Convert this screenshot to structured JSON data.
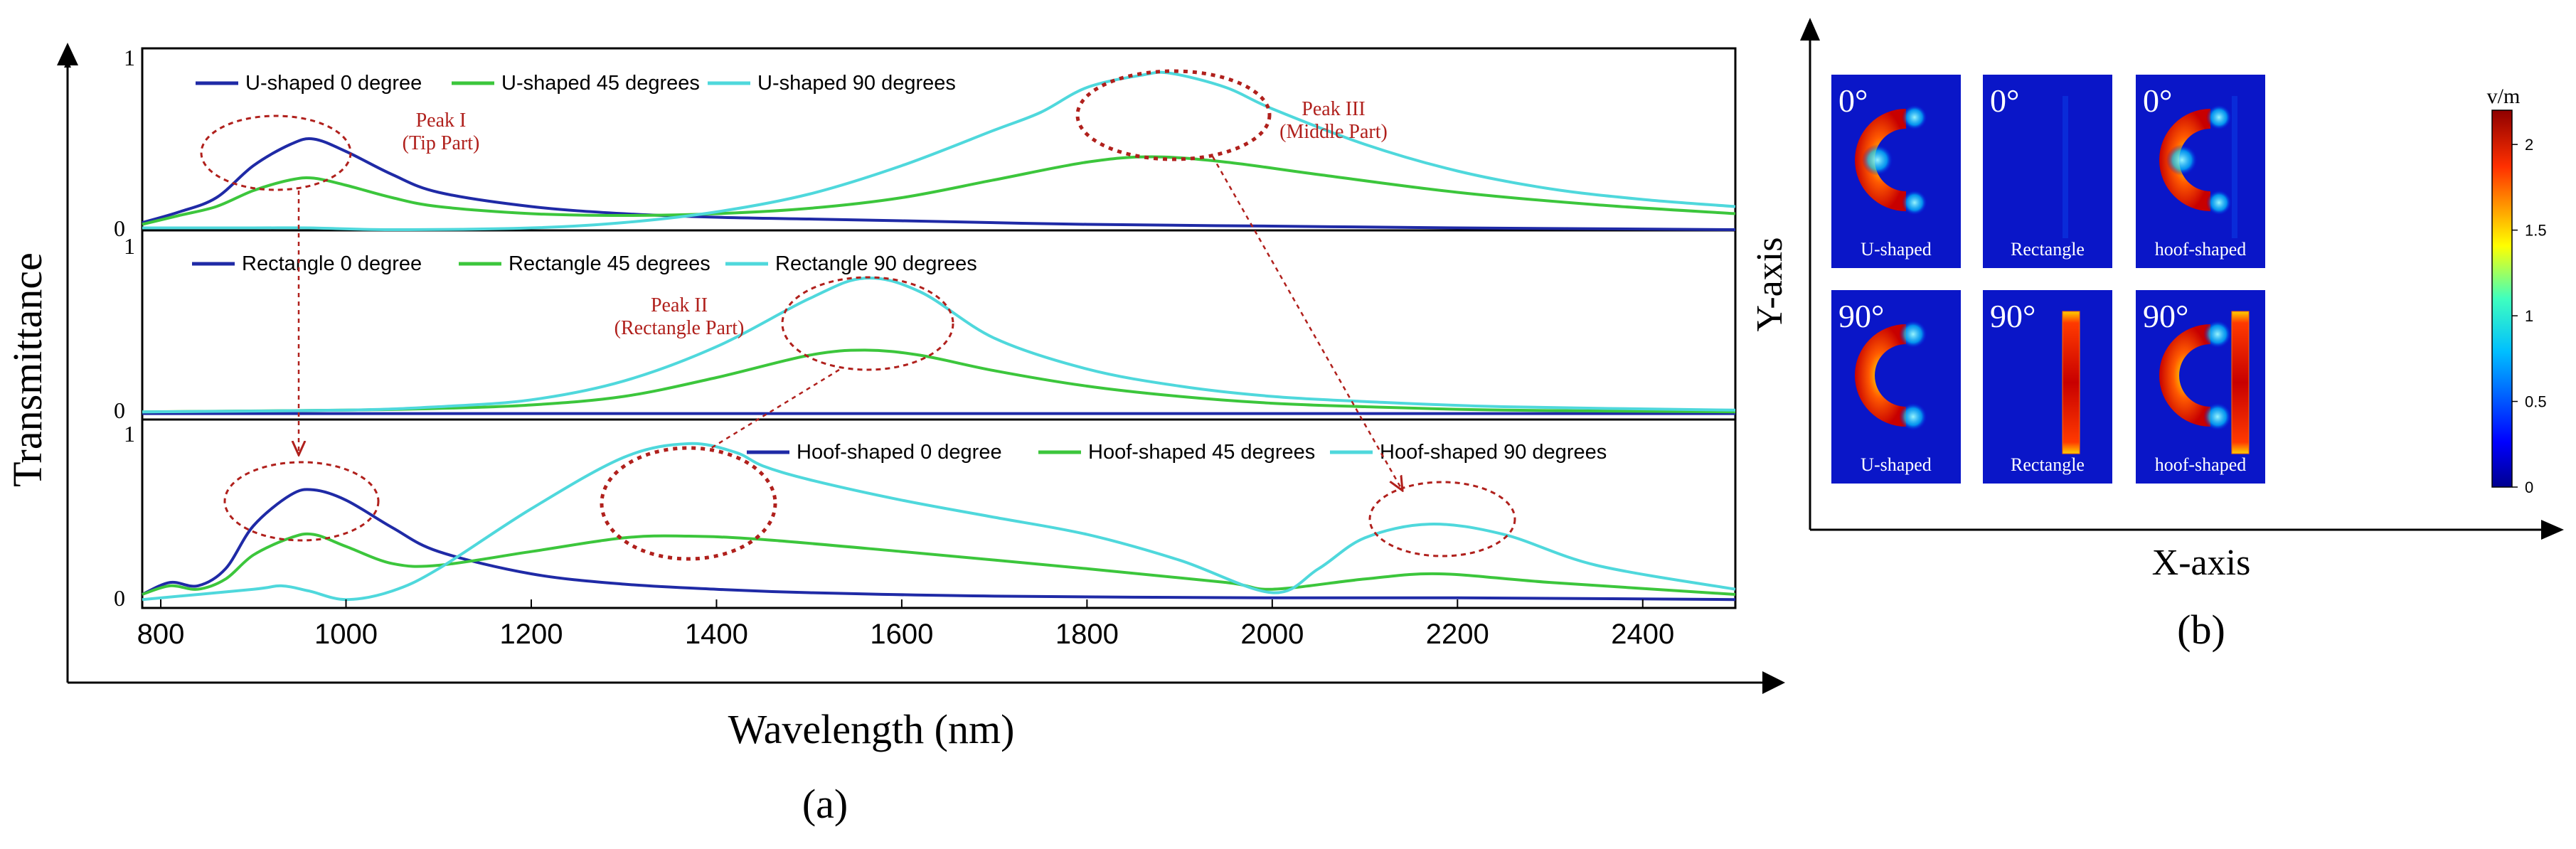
{
  "figure": {
    "panel_a_label": "(a)",
    "panel_b_label": "(b)",
    "x_axis_title": "Wavelength (nm)",
    "y_axis_title": "Transmittance"
  },
  "colors": {
    "deg0": "#1f2aa6",
    "deg45": "#3cc63c",
    "deg90": "#4fd8dc",
    "annotation": "#b0201c",
    "axis": "#000000"
  },
  "chart_data": [
    {
      "id": "spectra",
      "type": "line",
      "xlabel": "Wavelength (nm)",
      "ylabel": "Transmittance",
      "xlim": [
        780,
        2500
      ],
      "xticks": [
        800,
        1000,
        1200,
        1400,
        1600,
        1800,
        2000,
        2200,
        2400
      ],
      "xtick_labels": [
        "800",
        "1000",
        "1200",
        "1400",
        "1600",
        "1800",
        "2000",
        "2200",
        "2400"
      ],
      "panels": [
        {
          "name": "U-shaped",
          "ylim": [
            0,
            1
          ],
          "ytick_labels": [
            "0",
            "1"
          ],
          "series": [
            {
              "name": "U-shaped 0 degree",
              "color_key": "deg0",
              "x": [
                780,
                820,
                860,
                900,
                940,
                965,
                1000,
                1050,
                1100,
                1200,
                1300,
                1400,
                1500,
                1600,
                1800,
                2000,
                2200,
                2500
              ],
              "y": [
                0.06,
                0.12,
                0.2,
                0.38,
                0.5,
                0.53,
                0.46,
                0.33,
                0.23,
                0.15,
                0.11,
                0.09,
                0.08,
                0.07,
                0.05,
                0.04,
                0.03,
                0.02
              ]
            },
            {
              "name": "U-shaped 45 degrees",
              "color_key": "deg45",
              "x": [
                780,
                820,
                860,
                900,
                940,
                965,
                1000,
                1050,
                1100,
                1200,
                1300,
                1400,
                1500,
                1600,
                1700,
                1800,
                1870,
                1950,
                2050,
                2200,
                2350,
                2500
              ],
              "y": [
                0.05,
                0.1,
                0.15,
                0.24,
                0.3,
                0.31,
                0.27,
                0.2,
                0.15,
                0.11,
                0.1,
                0.11,
                0.14,
                0.2,
                0.3,
                0.4,
                0.43,
                0.4,
                0.33,
                0.23,
                0.16,
                0.11
              ]
            },
            {
              "name": "U-shaped 90 degrees",
              "color_key": "deg90",
              "x": [
                780,
                900,
                960,
                1050,
                1200,
                1300,
                1400,
                1500,
                1600,
                1700,
                1750,
                1800,
                1860,
                1890,
                1950,
                2000,
                2100,
                2200,
                2300,
                2400,
                2500
              ],
              "y": [
                0.03,
                0.03,
                0.03,
                0.02,
                0.03,
                0.06,
                0.12,
                0.22,
                0.38,
                0.58,
                0.68,
                0.82,
                0.89,
                0.9,
                0.82,
                0.7,
                0.5,
                0.35,
                0.25,
                0.19,
                0.15
              ]
            }
          ],
          "legend_labels": [
            "U-shaped 0 degree",
            "U-shaped 45 degrees",
            "U-shaped 90 degrees"
          ]
        },
        {
          "name": "Rectangle",
          "ylim": [
            0,
            1
          ],
          "ytick_labels": [
            "0",
            "1"
          ],
          "series": [
            {
              "name": "Rectangle 0 degree",
              "color_key": "deg0",
              "x": [
                780,
                1000,
                1500,
                2000,
                2500
              ],
              "y": [
                0.01,
                0.01,
                0.01,
                0.01,
                0.01
              ]
            },
            {
              "name": "Rectangle 45 degrees",
              "color_key": "deg45",
              "x": [
                780,
                1000,
                1100,
                1200,
                1300,
                1400,
                1500,
                1560,
                1620,
                1700,
                1800,
                1900,
                2000,
                2100,
                2250,
                2500
              ],
              "y": [
                0.02,
                0.03,
                0.04,
                0.06,
                0.11,
                0.22,
                0.35,
                0.38,
                0.35,
                0.26,
                0.17,
                0.11,
                0.07,
                0.05,
                0.03,
                0.02
              ]
            },
            {
              "name": "Rectangle 90 degrees",
              "color_key": "deg90",
              "x": [
                780,
                1000,
                1100,
                1200,
                1300,
                1400,
                1500,
                1560,
                1620,
                1700,
                1800,
                1900,
                2000,
                2100,
                2250,
                2500
              ],
              "y": [
                0.02,
                0.03,
                0.05,
                0.09,
                0.2,
                0.4,
                0.68,
                0.8,
                0.72,
                0.45,
                0.27,
                0.17,
                0.11,
                0.08,
                0.05,
                0.03
              ]
            }
          ],
          "legend_labels": [
            "Rectangle 0 degree",
            "Rectangle 45 degrees",
            "Rectangle 90 degrees"
          ]
        },
        {
          "name": "Hoof-shaped",
          "ylim": [
            0,
            1
          ],
          "ytick_labels": [
            "0",
            "1"
          ],
          "series": [
            {
              "name": "Hoof-shaped 0 degree",
              "color_key": "deg0",
              "x": [
                780,
                810,
                840,
                870,
                900,
                940,
                965,
                1000,
                1050,
                1100,
                1200,
                1300,
                1400,
                1500,
                1700,
                2000,
                2200,
                2500
              ],
              "y": [
                0.05,
                0.12,
                0.1,
                0.2,
                0.45,
                0.63,
                0.66,
                0.6,
                0.44,
                0.3,
                0.17,
                0.11,
                0.08,
                0.06,
                0.04,
                0.03,
                0.03,
                0.02
              ]
            },
            {
              "name": "Hoof-shaped 45 degrees",
              "color_key": "deg45",
              "x": [
                780,
                810,
                840,
                870,
                900,
                940,
                965,
                1000,
                1050,
                1100,
                1200,
                1300,
                1370,
                1450,
                1600,
                1800,
                1950,
                2000,
                2100,
                2180,
                2300,
                2500
              ],
              "y": [
                0.05,
                0.1,
                0.08,
                0.14,
                0.28,
                0.38,
                0.4,
                0.33,
                0.23,
                0.22,
                0.3,
                0.38,
                0.39,
                0.37,
                0.3,
                0.2,
                0.12,
                0.08,
                0.14,
                0.17,
                0.12,
                0.05
              ]
            },
            {
              "name": "Hoof-shaped 90 degrees",
              "color_key": "deg90",
              "x": [
                780,
                900,
                930,
                960,
                1000,
                1050,
                1100,
                1200,
                1300,
                1370,
                1420,
                1450,
                1500,
                1600,
                1700,
                1800,
                1900,
                2000,
                2050,
                2100,
                2170,
                2250,
                2350,
                2500
              ],
              "y": [
                0.02,
                0.08,
                0.1,
                0.07,
                0.02,
                0.07,
                0.2,
                0.55,
                0.85,
                0.93,
                0.88,
                0.8,
                0.72,
                0.6,
                0.5,
                0.4,
                0.25,
                0.06,
                0.2,
                0.38,
                0.46,
                0.4,
                0.22,
                0.08
              ]
            }
          ],
          "legend_labels": [
            "Hoof-shaped 0 degree",
            "Hoof-shaped 45 degrees",
            "Hoof-shaped 90 degrees"
          ]
        }
      ],
      "annotations": [
        {
          "label_lines": [
            "Peak I",
            "(Tip Part)"
          ]
        },
        {
          "label_lines": [
            "Peak II",
            "(Rectangle Part)"
          ]
        },
        {
          "label_lines": [
            "Peak III",
            "(Middle Part)"
          ]
        }
      ]
    },
    {
      "id": "field-maps",
      "type": "heatmap",
      "xlabel": "X-axis",
      "ylabel": "Y-axis",
      "colorbar": {
        "unit": "v/m",
        "ticks": [
          0,
          0.5,
          1,
          1.5,
          2
        ],
        "tick_labels": [
          "0",
          "0.5",
          "1",
          "1.5",
          "2"
        ]
      },
      "maps": [
        {
          "angle": "0°",
          "shape": "U-shaped"
        },
        {
          "angle": "0°",
          "shape": "Rectangle"
        },
        {
          "angle": "0°",
          "shape": "hoof-shaped"
        },
        {
          "angle": "90°",
          "shape": "U-shaped"
        },
        {
          "angle": "90°",
          "shape": "Rectangle"
        },
        {
          "angle": "90°",
          "shape": "hoof-shaped"
        }
      ]
    }
  ]
}
